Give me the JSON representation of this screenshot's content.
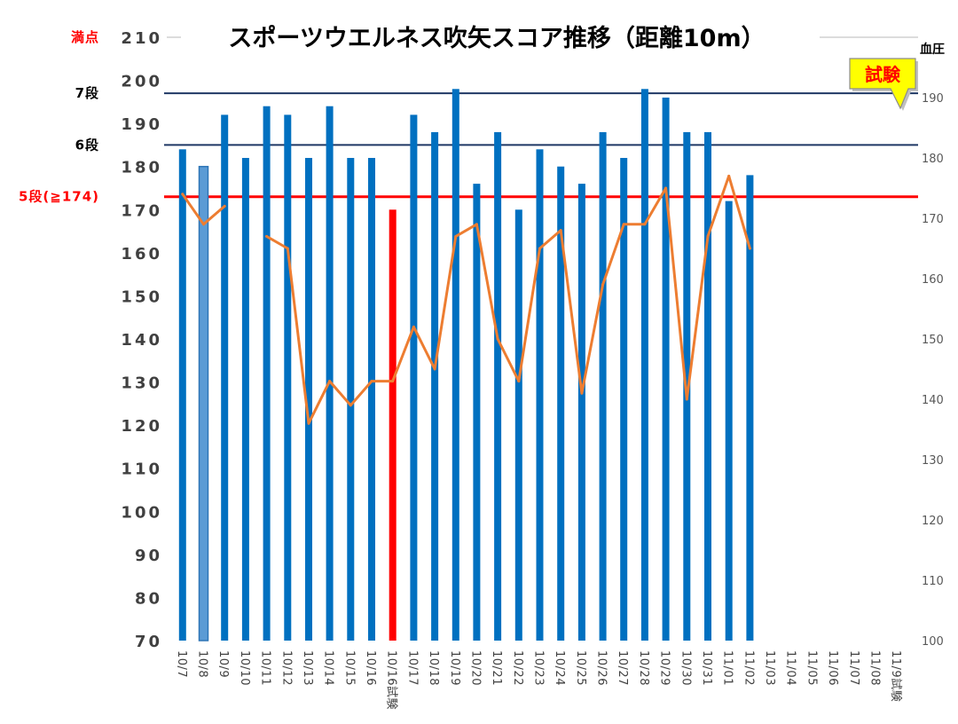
{
  "chart_data": {
    "type": "bar",
    "title": "スポーツウエルネス吹矢スコア推移（距離10m）",
    "categories": [
      "10/7",
      "10/8",
      "10/9",
      "10/10",
      "10/11",
      "10/12",
      "10/13",
      "10/14",
      "10/15",
      "10/16",
      "10/16試験",
      "10/17",
      "10/18",
      "10/19",
      "10/20",
      "10/21",
      "10/22",
      "10/23",
      "10/24",
      "10/25",
      "10/26",
      "10/27",
      "10/28",
      "10/29",
      "10/30",
      "10/31",
      "11/01",
      "11/02",
      "11/03",
      "11/04",
      "11/05",
      "11/06",
      "11/07",
      "11/08",
      "11/9試験"
    ],
    "series": [
      {
        "type": "bar",
        "axis": "left",
        "color": "#0070C0",
        "values": [
          184,
          180,
          192,
          182,
          194,
          192,
          182,
          194,
          182,
          182,
          170,
          192,
          188,
          198,
          176,
          188,
          170,
          184,
          180,
          176,
          188,
          182,
          198,
          196,
          188,
          188,
          172,
          178,
          null,
          null,
          null,
          null,
          null,
          null,
          null
        ]
      },
      {
        "type": "line",
        "axis": "right",
        "color": "#ED7D31",
        "values": [
          174,
          169,
          172,
          null,
          167,
          165,
          136,
          143,
          139,
          143,
          143,
          152,
          145,
          167,
          169,
          150,
          143,
          165,
          168,
          141,
          159,
          169,
          169,
          175,
          140,
          167,
          177,
          165,
          null,
          null,
          null,
          null,
          null,
          null,
          null
        ]
      }
    ],
    "bar_point_styles": [
      {
        "category": "10/8",
        "fill": "#5B9BD5",
        "stroke": "#2E75B6"
      },
      {
        "category": "10/16試験",
        "fill": "#FF0000"
      }
    ],
    "y_left": {
      "min": 70,
      "max": 210,
      "ticks": [
        70,
        80,
        90,
        100,
        110,
        120,
        130,
        140,
        150,
        160,
        170,
        180,
        190,
        200,
        210
      ]
    },
    "y_right": {
      "min": 100,
      "max": 200,
      "ticks": [
        100,
        110,
        120,
        130,
        140,
        150,
        160,
        170,
        180,
        190
      ],
      "label": "血圧"
    },
    "reference_lines": [
      {
        "label": "満点",
        "value": 210,
        "label_color": "#FF0000",
        "line_color": null
      },
      {
        "label": "7段",
        "value": 197,
        "label_color": "#000000",
        "line_color": "#1F3864"
      },
      {
        "label": "6段",
        "value": 185,
        "label_color": "#000000",
        "line_color": "#1F3864"
      },
      {
        "label": "5段(≧174)",
        "value": 173,
        "label_color": "#FF0000",
        "line_color": "#FF0000"
      }
    ],
    "annotation": {
      "text": "試験",
      "fill": "#FFFF00",
      "text_color": "#FF0000"
    },
    "grid": false,
    "legend": "none"
  }
}
